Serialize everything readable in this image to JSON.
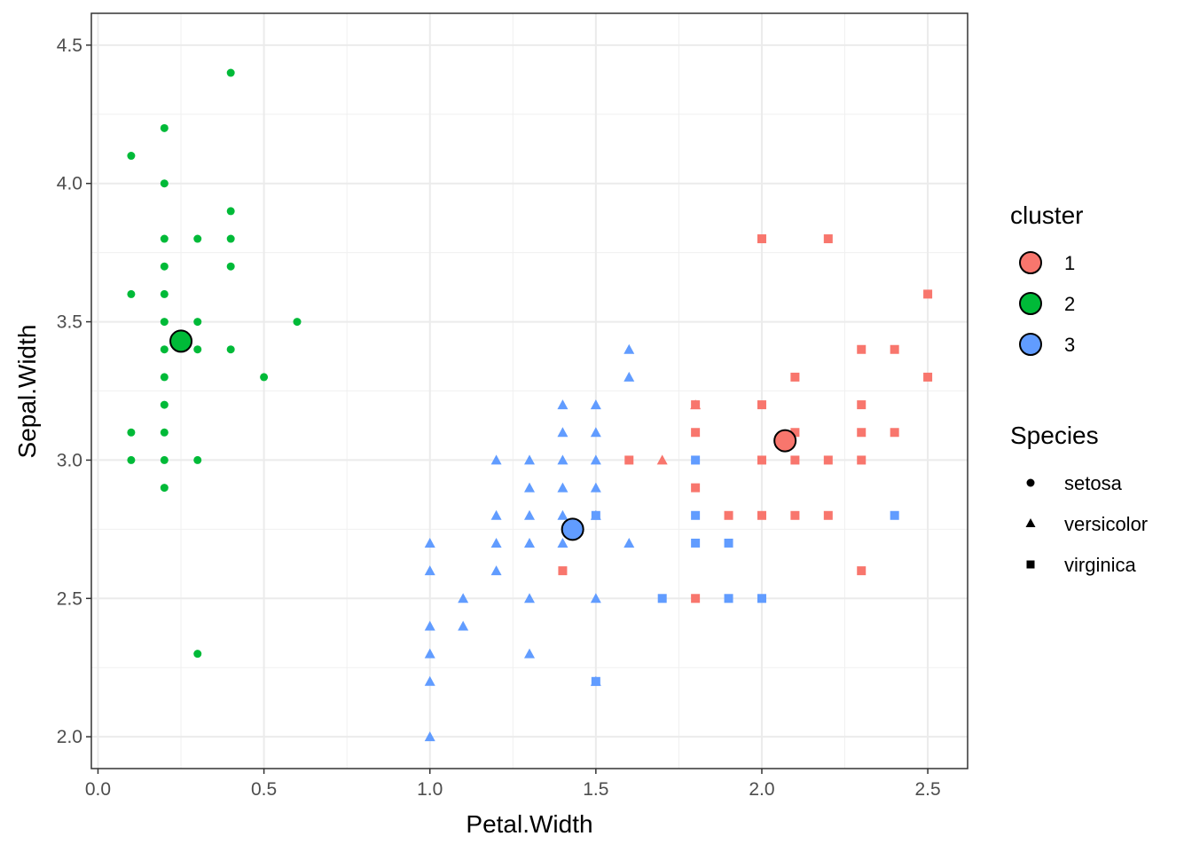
{
  "chart_data": {
    "type": "scatter",
    "xlabel": "Petal.Width",
    "ylabel": "Sepal.Width",
    "xlim": [
      -0.02,
      2.62
    ],
    "ylim": [
      1.885,
      4.615
    ],
    "x_ticks": [
      "0.0",
      "0.5",
      "1.0",
      "1.5",
      "2.0",
      "2.5"
    ],
    "y_ticks": [
      "2.0",
      "2.5",
      "3.0",
      "3.5",
      "4.0",
      "4.5"
    ],
    "grid": true,
    "legend_position": "right",
    "colors": {
      "1": "#F8766D",
      "2": "#00BA38",
      "3": "#619CFF"
    },
    "cluster_legend": {
      "title": "cluster",
      "items": [
        "1",
        "2",
        "3"
      ]
    },
    "species_legend": {
      "title": "Species",
      "items": [
        "setosa",
        "versicolor",
        "virginica"
      ]
    },
    "series": [
      {
        "species": "setosa",
        "cluster": "2",
        "points": [
          [
            0.4,
            4.4
          ],
          [
            0.2,
            4.2
          ],
          [
            0.1,
            4.1
          ],
          [
            0.2,
            4.0
          ],
          [
            0.4,
            3.9
          ],
          [
            0.2,
            3.8
          ],
          [
            0.3,
            3.8
          ],
          [
            0.4,
            3.8
          ],
          [
            0.2,
            3.7
          ],
          [
            0.4,
            3.7
          ],
          [
            0.1,
            3.6
          ],
          [
            0.2,
            3.6
          ],
          [
            0.2,
            3.5
          ],
          [
            0.3,
            3.5
          ],
          [
            0.6,
            3.5
          ],
          [
            0.2,
            3.4
          ],
          [
            0.3,
            3.4
          ],
          [
            0.4,
            3.4
          ],
          [
            0.2,
            3.3
          ],
          [
            0.5,
            3.3
          ],
          [
            0.2,
            3.2
          ],
          [
            0.1,
            3.1
          ],
          [
            0.2,
            3.1
          ],
          [
            0.1,
            3.0
          ],
          [
            0.2,
            3.0
          ],
          [
            0.3,
            3.0
          ],
          [
            0.2,
            2.9
          ],
          [
            0.3,
            2.3
          ]
        ]
      },
      {
        "species": "versicolor",
        "cluster": "3",
        "points": [
          [
            1.6,
            3.4
          ],
          [
            1.6,
            3.3
          ],
          [
            1.4,
            3.2
          ],
          [
            1.5,
            3.2
          ],
          [
            1.4,
            3.1
          ],
          [
            1.5,
            3.1
          ],
          [
            1.2,
            3.0
          ],
          [
            1.3,
            3.0
          ],
          [
            1.4,
            3.0
          ],
          [
            1.5,
            3.0
          ],
          [
            1.3,
            2.9
          ],
          [
            1.4,
            2.9
          ],
          [
            1.5,
            2.9
          ],
          [
            1.2,
            2.8
          ],
          [
            1.3,
            2.8
          ],
          [
            1.4,
            2.8
          ],
          [
            1.5,
            2.8
          ],
          [
            1.2,
            2.7
          ],
          [
            1.3,
            2.7
          ],
          [
            1.4,
            2.7
          ],
          [
            1.6,
            2.7
          ],
          [
            1.0,
            2.7
          ],
          [
            1.0,
            2.6
          ],
          [
            1.2,
            2.6
          ],
          [
            1.1,
            2.5
          ],
          [
            1.3,
            2.5
          ],
          [
            1.5,
            2.5
          ],
          [
            1.0,
            2.4
          ],
          [
            1.1,
            2.4
          ],
          [
            1.0,
            2.3
          ],
          [
            1.3,
            2.3
          ],
          [
            1.0,
            2.2
          ],
          [
            1.5,
            2.2
          ],
          [
            1.0,
            2.0
          ]
        ]
      },
      {
        "species": "versicolor",
        "cluster": "1",
        "points": [
          [
            1.7,
            3.0
          ],
          [
            1.8,
            3.2
          ]
        ]
      },
      {
        "species": "virginica",
        "cluster": "1",
        "points": [
          [
            2.0,
            3.8
          ],
          [
            2.2,
            3.8
          ],
          [
            2.5,
            3.6
          ],
          [
            2.3,
            3.4
          ],
          [
            2.4,
            3.4
          ],
          [
            2.1,
            3.3
          ],
          [
            2.5,
            3.3
          ],
          [
            1.8,
            3.2
          ],
          [
            2.0,
            3.2
          ],
          [
            2.3,
            3.2
          ],
          [
            1.8,
            3.1
          ],
          [
            2.1,
            3.1
          ],
          [
            2.3,
            3.1
          ],
          [
            2.4,
            3.1
          ],
          [
            1.6,
            3.0
          ],
          [
            2.0,
            3.0
          ],
          [
            2.1,
            3.0
          ],
          [
            2.2,
            3.0
          ],
          [
            2.3,
            3.0
          ],
          [
            1.8,
            2.9
          ],
          [
            1.9,
            2.8
          ],
          [
            2.0,
            2.8
          ],
          [
            2.1,
            2.8
          ],
          [
            2.2,
            2.8
          ],
          [
            1.4,
            2.6
          ],
          [
            2.3,
            2.6
          ],
          [
            1.8,
            2.5
          ]
        ]
      },
      {
        "species": "virginica",
        "cluster": "3",
        "points": [
          [
            1.8,
            3.0
          ],
          [
            1.5,
            2.8
          ],
          [
            1.8,
            2.8
          ],
          [
            2.4,
            2.8
          ],
          [
            1.8,
            2.7
          ],
          [
            1.9,
            2.7
          ],
          [
            1.7,
            2.5
          ],
          [
            1.9,
            2.5
          ],
          [
            2.0,
            2.5
          ],
          [
            1.5,
            2.2
          ]
        ]
      }
    ],
    "centroids": [
      {
        "cluster": "1",
        "x": 2.07,
        "y": 3.07
      },
      {
        "cluster": "2",
        "x": 0.25,
        "y": 3.43
      },
      {
        "cluster": "3",
        "x": 1.43,
        "y": 2.75
      }
    ]
  }
}
